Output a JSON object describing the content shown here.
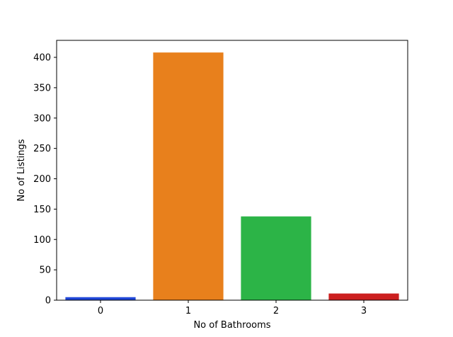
{
  "chart_data": {
    "type": "bar",
    "categories": [
      "0",
      "1",
      "2",
      "3"
    ],
    "values": [
      5,
      408,
      138,
      11
    ],
    "colors": [
      "#2047d8",
      "#e8801c",
      "#2cb447",
      "#cc1f1f"
    ],
    "xlabel": "No of Bathrooms",
    "ylabel": "No of Listings",
    "ylim": [
      0,
      428
    ],
    "yticks": [
      0,
      50,
      100,
      150,
      200,
      250,
      300,
      350,
      400
    ],
    "ytick_labels": [
      "0",
      "50",
      "100",
      "150",
      "200",
      "250",
      "300",
      "350",
      "400"
    ],
    "grid": false,
    "legend": "none"
  }
}
